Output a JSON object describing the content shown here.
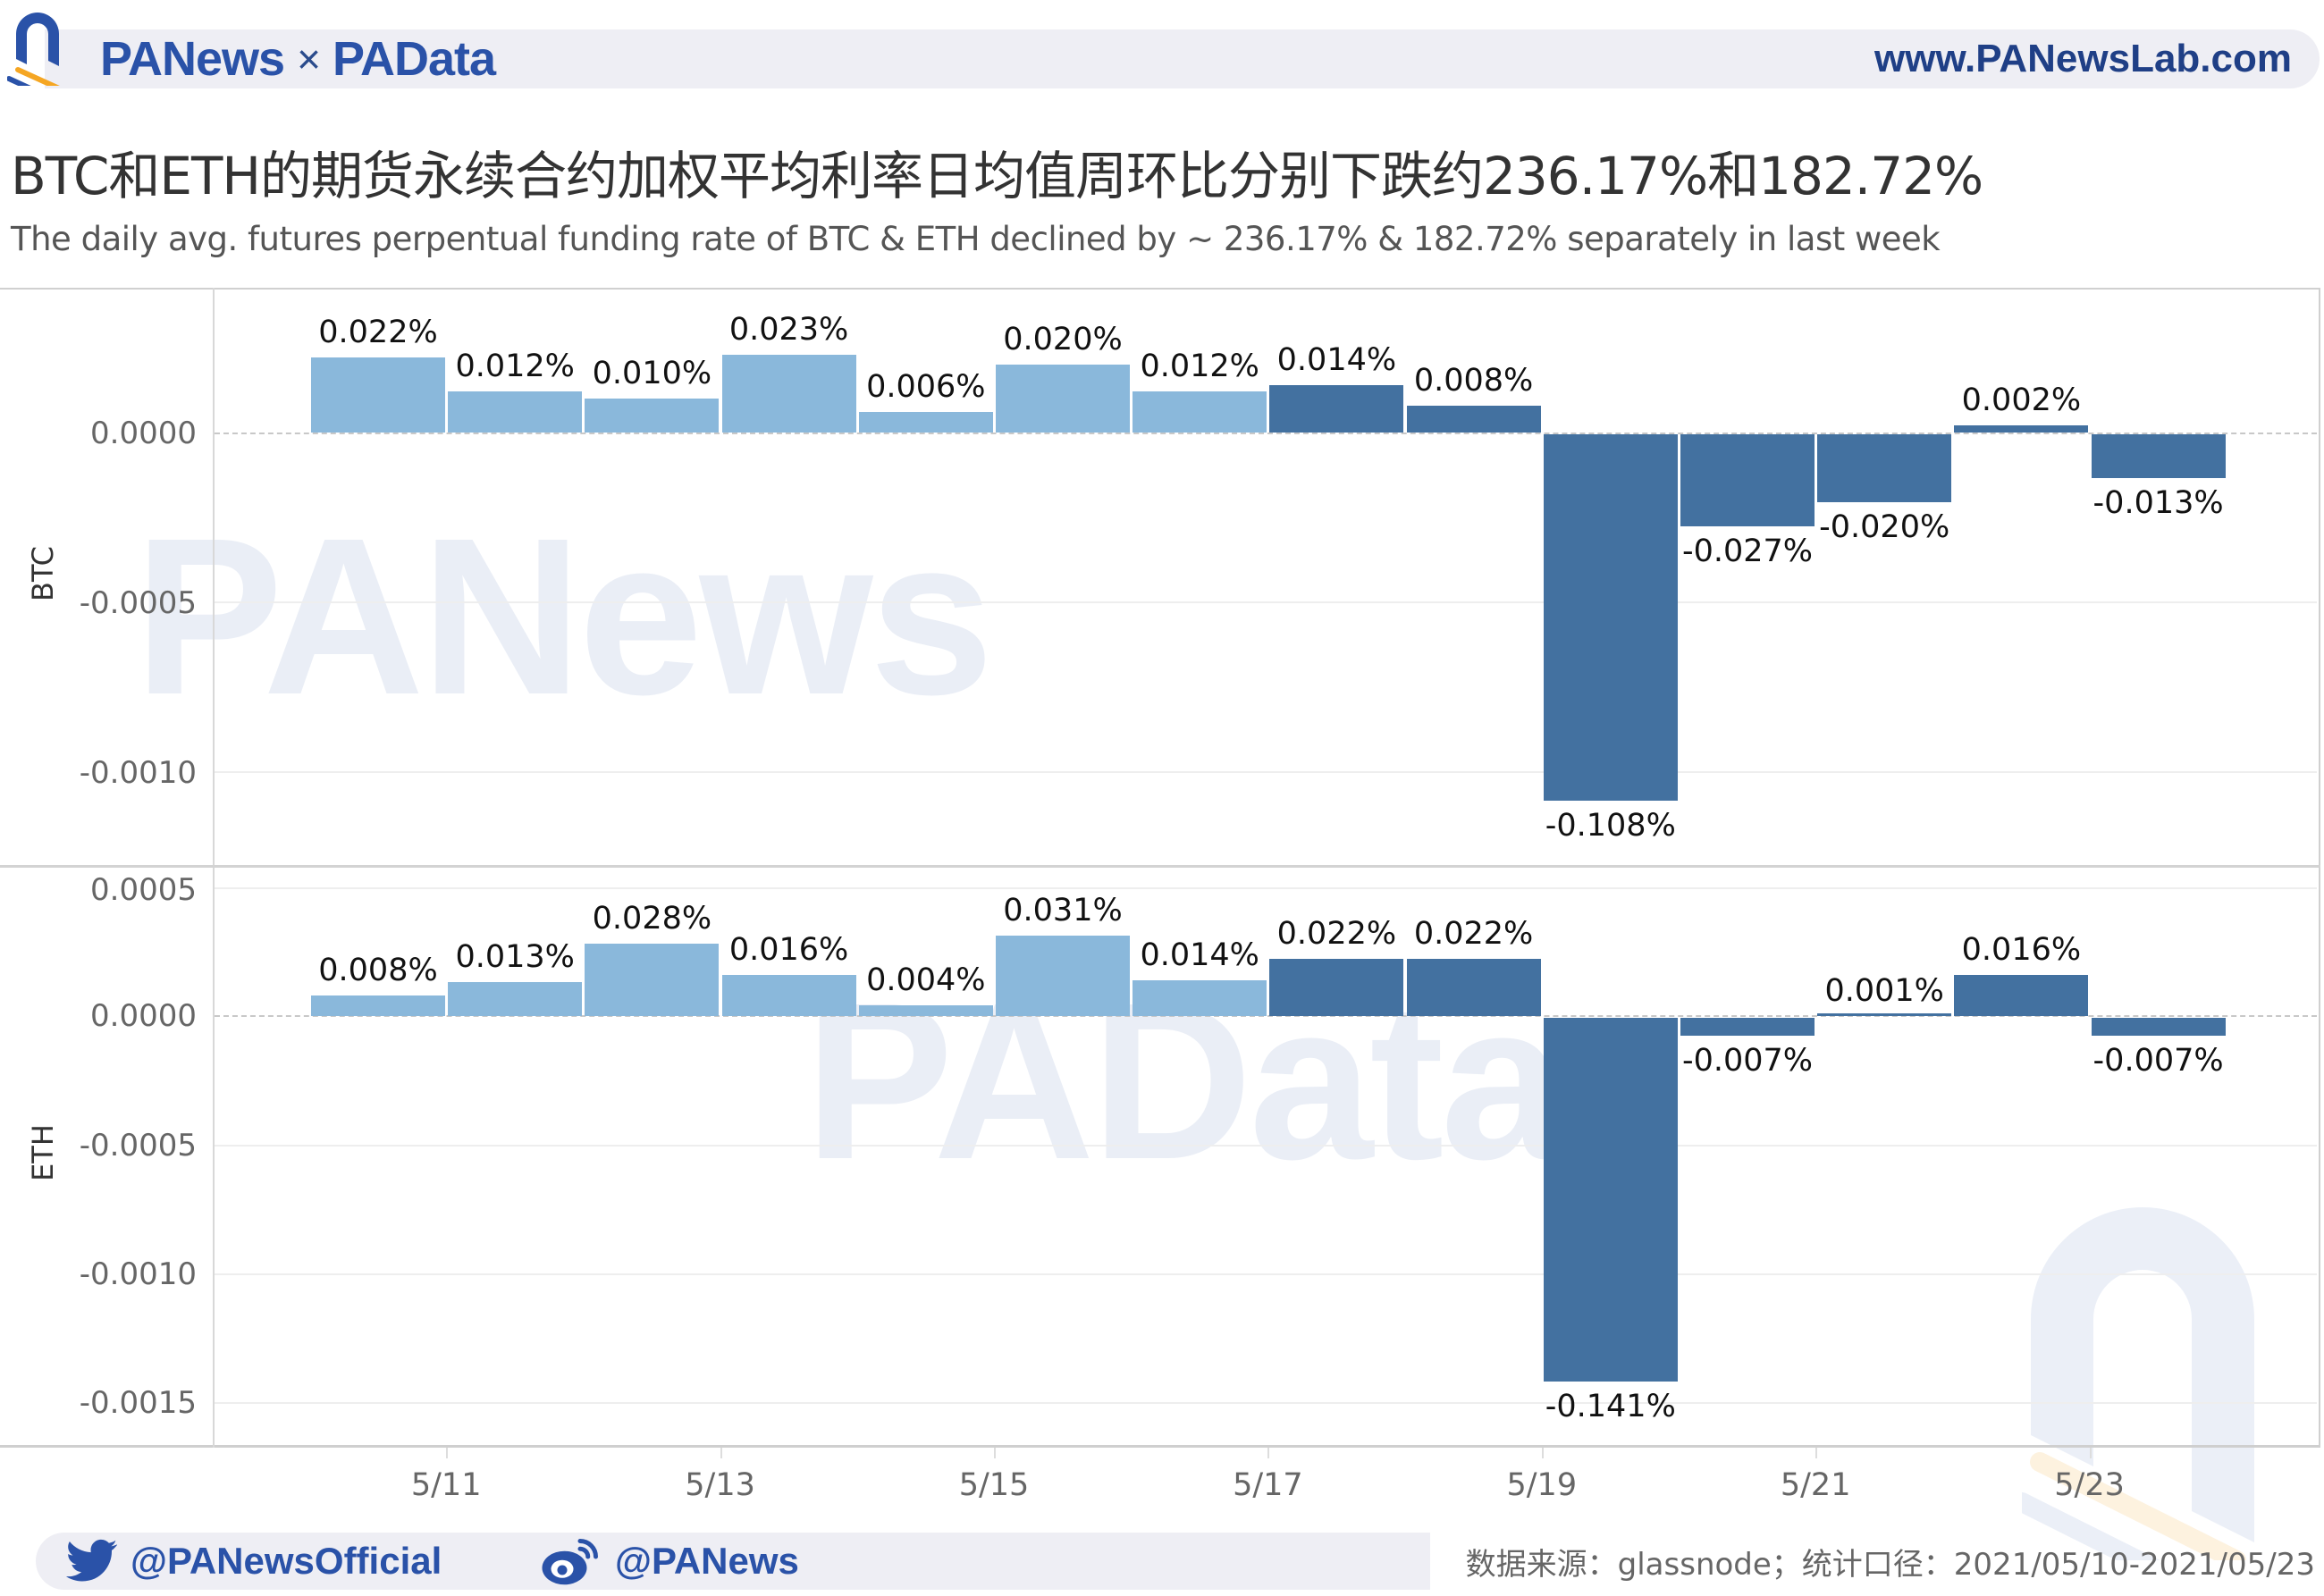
{
  "header": {
    "brand_left": "PANews",
    "brand_sep": "×",
    "brand_right": "PAData",
    "site_url": "www.PANewsLab.com"
  },
  "title": {
    "cn": "BTC和ETH的期货永续合约加权平均利率日均值周环比分别下跌约236.17%和182.72%",
    "en": "The daily avg. futures perpentual funding rate of BTC & ETH declined by ~ 236.17% & 182.72% separately in last week"
  },
  "colors": {
    "bar_light": "#8AB8DB",
    "bar_dark": "#4371A0",
    "brand_blue": "#2A52A8",
    "brand_orange": "#F5A623"
  },
  "chart_data": {
    "type": "bar",
    "title": "BTC和ETH的期货永续合约加权平均利率日均值周环比分别下跌约236.17%和182.72%",
    "subtitle": "The daily avg. futures perpentual funding rate of BTC & ETH declined by ~ 236.17% & 182.72% separately in last week",
    "xlabel": "",
    "categories": [
      "5/10",
      "5/11",
      "5/12",
      "5/13",
      "5/14",
      "5/15",
      "5/16",
      "5/17",
      "5/18",
      "5/19",
      "5/20",
      "5/21",
      "5/22",
      "5/23"
    ],
    "x_tick_labels": [
      "5/11",
      "5/13",
      "5/15",
      "5/17",
      "5/19",
      "5/21",
      "5/23"
    ],
    "color_groups": {
      "light": [
        "5/10",
        "5/11",
        "5/12",
        "5/13",
        "5/14",
        "5/15",
        "5/16"
      ],
      "dark": [
        "5/17",
        "5/18",
        "5/19",
        "5/20",
        "5/21",
        "5/22",
        "5/23"
      ]
    },
    "grid": true,
    "legend": "none",
    "series": [
      {
        "name": "BTC",
        "ylabel": "BTC",
        "values": [
          0.00022,
          0.00012,
          0.0001,
          0.00023,
          6e-05,
          0.0002,
          0.00012,
          0.00014,
          8e-05,
          -0.00108,
          -0.00027,
          -0.0002,
          2e-05,
          -0.00013
        ],
        "labels": [
          "0.022%",
          "0.012%",
          "0.010%",
          "0.023%",
          "0.006%",
          "0.020%",
          "0.012%",
          "0.014%",
          "0.008%",
          "-0.108%",
          "-0.027%",
          "-0.020%",
          "0.002%",
          "-0.013%"
        ],
        "yticks": [
          "0.0000",
          "-0.0005",
          "-0.0010"
        ],
        "ylim": [
          -0.00125,
          0.00043
        ]
      },
      {
        "name": "ETH",
        "ylabel": "ETH",
        "values": [
          8e-05,
          0.00013,
          0.00028,
          0.00016,
          4e-05,
          0.00031,
          0.00014,
          0.00022,
          0.00022,
          -0.00141,
          -7e-05,
          1e-05,
          0.00016,
          -7e-05
        ],
        "labels": [
          "0.008%",
          "0.013%",
          "0.028%",
          "0.016%",
          "0.004%",
          "0.031%",
          "0.014%",
          "0.022%",
          "0.022%",
          "-0.141%",
          "-0.007%",
          "0.001%",
          "0.016%",
          "-0.007%"
        ],
        "yticks": [
          "0.0005",
          "0.0000",
          "-0.0005",
          "-0.0010",
          "-0.0015"
        ],
        "ylim": [
          -0.00166,
          0.00058
        ]
      }
    ]
  },
  "watermarks": {
    "top": "PANews",
    "bottom": "PAData"
  },
  "footer": {
    "twitter_handle": "@PANewsOfficial",
    "weibo_handle": "@PANews",
    "source": "数据来源：glassnode；统计口径：2021/05/10-2021/05/23"
  }
}
